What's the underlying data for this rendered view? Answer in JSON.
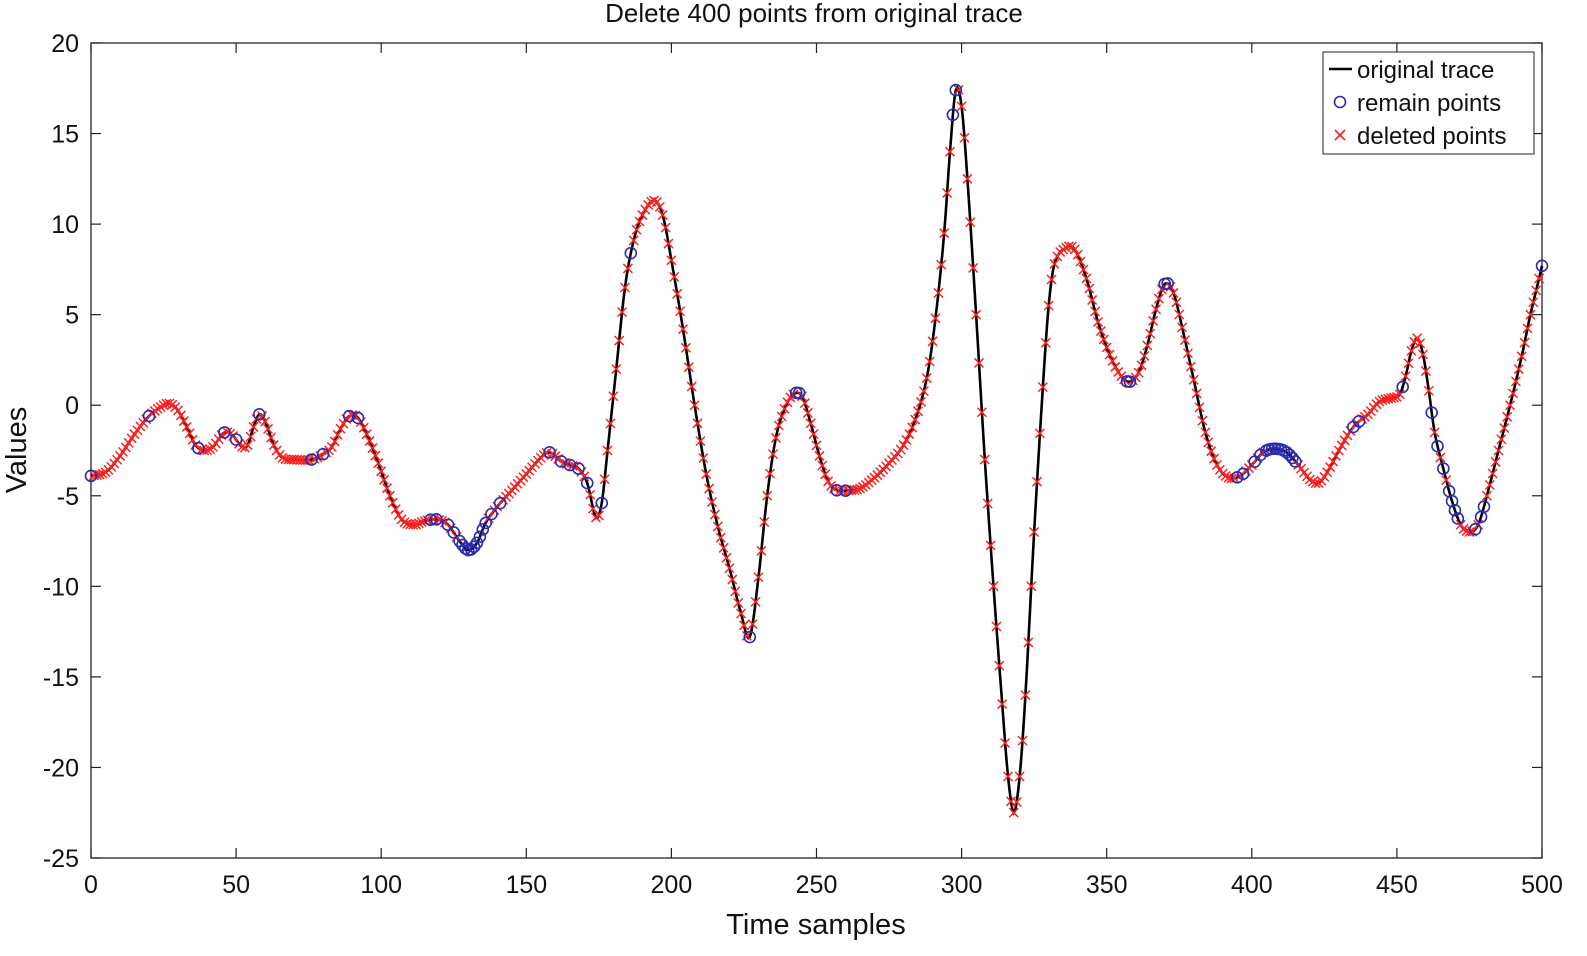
{
  "chart_data": {
    "type": "line",
    "title": "Delete 400 points from original trace",
    "xlabel": "Time samples",
    "ylabel": "Values",
    "xlim": [
      0,
      500
    ],
    "ylim": [
      -25,
      20
    ],
    "xticks": [
      "0",
      "50",
      "100",
      "150",
      "200",
      "250",
      "300",
      "350",
      "400",
      "450",
      "500"
    ],
    "yticks": [
      "20",
      "15",
      "10",
      "5",
      "0",
      "-5",
      "-10",
      "-15",
      "-20",
      "-25"
    ],
    "grid": false,
    "legend_position": "top-right",
    "colors": {
      "trace": "#000000",
      "remain": "#2b2bb0",
      "deleted": "#ff2020"
    },
    "legend": [
      "original trace",
      "remain points",
      "deleted points"
    ],
    "trace_keypoints": [
      [
        0,
        -3.9
      ],
      [
        5,
        -3.7
      ],
      [
        10,
        -2.8
      ],
      [
        15,
        -1.6
      ],
      [
        20,
        -0.6
      ],
      [
        24,
        -0.1
      ],
      [
        27,
        0.1
      ],
      [
        30,
        -0.3
      ],
      [
        33,
        -1.2
      ],
      [
        36,
        -2.2
      ],
      [
        39,
        -2.5
      ],
      [
        42,
        -2.3
      ],
      [
        46,
        -1.5
      ],
      [
        49,
        -1.7
      ],
      [
        52,
        -2.3
      ],
      [
        54,
        -2.2
      ],
      [
        56,
        -1.2
      ],
      [
        58,
        -0.5
      ],
      [
        60,
        -0.9
      ],
      [
        63,
        -2.2
      ],
      [
        66,
        -2.9
      ],
      [
        70,
        -3.0
      ],
      [
        76,
        -3.0
      ],
      [
        80,
        -2.7
      ],
      [
        83,
        -2.3
      ],
      [
        86,
        -1.3
      ],
      [
        89,
        -0.6
      ],
      [
        92,
        -0.7
      ],
      [
        95,
        -1.6
      ],
      [
        99,
        -3.2
      ],
      [
        103,
        -5.0
      ],
      [
        107,
        -6.3
      ],
      [
        111,
        -6.6
      ],
      [
        115,
        -6.4
      ],
      [
        119,
        -6.3
      ],
      [
        123,
        -6.6
      ],
      [
        127,
        -7.5
      ],
      [
        130,
        -8.0
      ],
      [
        133,
        -7.6
      ],
      [
        136,
        -6.5
      ],
      [
        140,
        -5.6
      ],
      [
        145,
        -4.7
      ],
      [
        150,
        -3.8
      ],
      [
        155,
        -2.9
      ],
      [
        158,
        -2.6
      ],
      [
        162,
        -3.1
      ],
      [
        165,
        -3.3
      ],
      [
        168,
        -3.5
      ],
      [
        171,
        -4.3
      ],
      [
        174,
        -6.2
      ],
      [
        176,
        -5.4
      ],
      [
        178,
        -2.5
      ],
      [
        181,
        2.0
      ],
      [
        184,
        6.5
      ],
      [
        187,
        9.1
      ],
      [
        190,
        10.5
      ],
      [
        194,
        11.3
      ],
      [
        197,
        10.5
      ],
      [
        200,
        8.0
      ],
      [
        204,
        4.2
      ],
      [
        208,
        0.0
      ],
      [
        212,
        -3.8
      ],
      [
        216,
        -6.7
      ],
      [
        220,
        -9.0
      ],
      [
        224,
        -11.5
      ],
      [
        227,
        -12.8
      ],
      [
        230,
        -9.5
      ],
      [
        233,
        -5.0
      ],
      [
        236,
        -1.8
      ],
      [
        239,
        -0.2
      ],
      [
        242,
        0.6
      ],
      [
        245,
        0.5
      ],
      [
        248,
        -1.0
      ],
      [
        251,
        -2.8
      ],
      [
        254,
        -4.2
      ],
      [
        257,
        -4.7
      ],
      [
        261,
        -4.7
      ],
      [
        265,
        -4.6
      ],
      [
        270,
        -4.0
      ],
      [
        275,
        -3.2
      ],
      [
        280,
        -2.2
      ],
      [
        284,
        -0.8
      ],
      [
        288,
        1.5
      ],
      [
        291,
        4.8
      ],
      [
        294,
        9.5
      ],
      [
        296,
        14.0
      ],
      [
        298,
        17.4
      ],
      [
        300,
        16.5
      ],
      [
        302,
        12.5
      ],
      [
        305,
        5.0
      ],
      [
        308,
        -3.0
      ],
      [
        311,
        -10.0
      ],
      [
        314,
        -16.5
      ],
      [
        316,
        -20.5
      ],
      [
        318,
        -22.5
      ],
      [
        320,
        -20.5
      ],
      [
        322,
        -16.0
      ],
      [
        325,
        -7.0
      ],
      [
        328,
        1.0
      ],
      [
        330,
        5.5
      ],
      [
        332,
        7.8
      ],
      [
        336,
        8.7
      ],
      [
        339,
        8.6
      ],
      [
        343,
        7.0
      ],
      [
        347,
        4.6
      ],
      [
        351,
        2.8
      ],
      [
        355,
        1.6
      ],
      [
        358,
        1.3
      ],
      [
        361,
        1.8
      ],
      [
        364,
        3.3
      ],
      [
        367,
        5.3
      ],
      [
        370,
        6.7
      ],
      [
        373,
        6.2
      ],
      [
        376,
        4.3
      ],
      [
        380,
        1.4
      ],
      [
        384,
        -1.5
      ],
      [
        388,
        -3.3
      ],
      [
        392,
        -4.0
      ],
      [
        396,
        -3.9
      ],
      [
        400,
        -3.3
      ],
      [
        404,
        -2.6
      ],
      [
        408,
        -2.4
      ],
      [
        412,
        -2.6
      ],
      [
        416,
        -3.3
      ],
      [
        420,
        -4.1
      ],
      [
        423,
        -4.3
      ],
      [
        426,
        -3.7
      ],
      [
        430,
        -2.5
      ],
      [
        435,
        -1.2
      ],
      [
        440,
        -0.5
      ],
      [
        444,
        0.2
      ],
      [
        448,
        0.4
      ],
      [
        451,
        0.6
      ],
      [
        453,
        1.6
      ],
      [
        455,
        3.0
      ],
      [
        457,
        3.7
      ],
      [
        459,
        2.8
      ],
      [
        461,
        0.8
      ],
      [
        463,
        -1.5
      ],
      [
        466,
        -3.5
      ],
      [
        469,
        -5.3
      ],
      [
        472,
        -6.6
      ],
      [
        475,
        -7.0
      ],
      [
        478,
        -6.6
      ],
      [
        481,
        -5.0
      ],
      [
        485,
        -2.5
      ],
      [
        489,
        0.0
      ],
      [
        493,
        2.7
      ],
      [
        496,
        5.0
      ],
      [
        499,
        7.0
      ],
      [
        500,
        7.7
      ]
    ],
    "remain_points": [
      0,
      20,
      37,
      46,
      50,
      58,
      76,
      80,
      89,
      92,
      117,
      119,
      123,
      125,
      127,
      128,
      129,
      130,
      131,
      132,
      133,
      134,
      135,
      136,
      138,
      141,
      158,
      162,
      165,
      168,
      171,
      176,
      186,
      227,
      243,
      244,
      257,
      260,
      297,
      298,
      357,
      358,
      370,
      371,
      395,
      397,
      401,
      403,
      405,
      406,
      407,
      408,
      409,
      410,
      411,
      412,
      413,
      414,
      415,
      435,
      437,
      452,
      462,
      464,
      466,
      468,
      469,
      470,
      471,
      477,
      479,
      480,
      500
    ]
  }
}
